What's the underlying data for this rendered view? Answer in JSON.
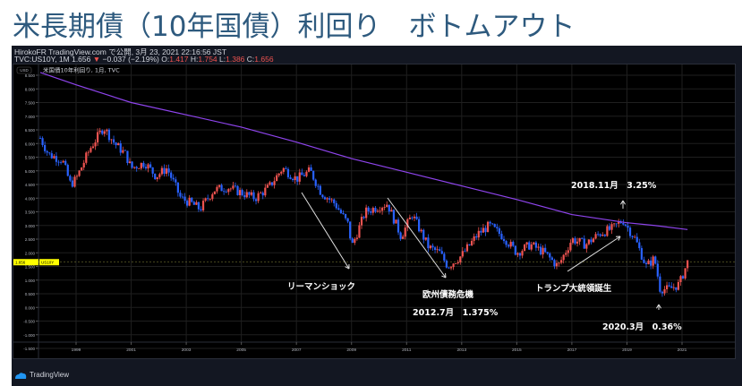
{
  "page": {
    "title": "米長期債（10年国債）利回り　ボトムアウト"
  },
  "header": {
    "line1": "HirokoFR TradingView.com で公開, 3月 23, 2021 22:16:56 JST",
    "symbol": "TVC:US10Y, 1M 1.656",
    "change_icon": "down-triangle-icon",
    "change": "−0.037 (−2.19%)",
    "o_label": "O:",
    "o_value": "1.417",
    "h_label": "H:",
    "h_value": "1.754",
    "l_label": "L:",
    "l_value": "1.386",
    "c_label": "C:",
    "c_value": "1.656"
  },
  "legend": {
    "currency": "USD",
    "series_label": "米国債10年利回り, 1月, TVC"
  },
  "price_badge": {
    "value": "1.656",
    "label": "US10Y",
    "color": "#ffff00"
  },
  "footer": {
    "brand": "TradingView",
    "logo": "tradingview-cloud-icon"
  },
  "annotations": {
    "lehman": "リーマンショック",
    "euro": "欧州債務危機",
    "euro_low": "2012.7月　1.375%",
    "trump": "トランプ大統領誕生",
    "peak": "2018.11月　3.25%",
    "bottom": "2020.3月　0.36%"
  },
  "colors": {
    "up": "#ef5350",
    "down": "#2962ff",
    "ma": "#8e44ec",
    "background": "#000000",
    "panel": "#131722",
    "grid": "#1e1e1e",
    "title": "#2e5a7e"
  },
  "chart_data": {
    "type": "candlestick",
    "title": "米長期債（10年国債）利回り　ボトムアウト",
    "symbol": "TVC:US10Y",
    "interval": "1M",
    "xlabel": "",
    "ylabel": "USD",
    "x_ticks": [
      "1999",
      "2001",
      "2003",
      "2005",
      "2007",
      "2009",
      "2011",
      "2013",
      "2015",
      "2017",
      "2019",
      "2021"
    ],
    "y_ticks": [
      "8.500",
      "8.000",
      "7.500",
      "7.000",
      "6.500",
      "6.000",
      "5.500",
      "5.000",
      "4.500",
      "4.000",
      "3.500",
      "3.000",
      "2.500",
      "2.000",
      "1.500",
      "1.000",
      "0.500",
      "0.000",
      "-0.500",
      "-1.000",
      "-1.500"
    ],
    "ylim": [
      -1.75,
      8.75
    ],
    "last_price": 1.656,
    "ohlc_last": {
      "open": 1.417,
      "high": 1.754,
      "low": 1.386,
      "close": 1.656
    },
    "series": [
      {
        "name": "US10Y monthly close (approx)",
        "x": [
          1997.7,
          1998.0,
          1998.5,
          1998.8,
          1999.0,
          1999.5,
          2000.0,
          2000.4,
          2000.8,
          2001.0,
          2001.5,
          2001.9,
          2002.3,
          2002.8,
          2003.2,
          2003.5,
          2004.0,
          2004.5,
          2005.0,
          2005.5,
          2006.0,
          2006.5,
          2007.0,
          2007.5,
          2007.9,
          2008.4,
          2008.9,
          2009.0,
          2009.5,
          2010.0,
          2010.3,
          2010.8,
          2011.2,
          2011.8,
          2012.2,
          2012.5,
          2013.0,
          2013.6,
          2014.0,
          2014.5,
          2015.0,
          2015.5,
          2016.0,
          2016.5,
          2017.0,
          2017.5,
          2018.0,
          2018.5,
          2018.85,
          2019.3,
          2019.7,
          2020.0,
          2020.2,
          2020.5,
          2020.9,
          2021.2
        ],
        "values": [
          6.2,
          5.6,
          5.4,
          4.5,
          4.7,
          5.8,
          6.6,
          6.0,
          5.6,
          5.1,
          5.3,
          4.8,
          5.1,
          4.0,
          3.8,
          3.6,
          4.3,
          4.4,
          4.2,
          4.0,
          4.4,
          5.1,
          4.7,
          5.0,
          4.2,
          3.8,
          3.0,
          2.2,
          3.5,
          3.7,
          3.8,
          2.6,
          3.4,
          2.2,
          2.0,
          1.5,
          1.9,
          2.7,
          3.0,
          2.6,
          2.0,
          2.3,
          2.0,
          1.5,
          2.5,
          2.3,
          2.7,
          2.9,
          3.2,
          2.5,
          1.5,
          1.8,
          0.7,
          0.65,
          0.85,
          1.66
        ]
      },
      {
        "name": "Moving average (purple)",
        "x": [
          1997.7,
          1999.0,
          2001.0,
          2003.0,
          2005.0,
          2007.0,
          2009.0,
          2011.0,
          2013.0,
          2015.0,
          2017.0,
          2019.0,
          2020.0,
          2021.2
        ],
        "values": [
          8.6,
          8.15,
          7.5,
          7.05,
          6.6,
          6.05,
          5.45,
          4.95,
          4.45,
          3.95,
          3.4,
          3.1,
          3.0,
          2.85
        ]
      }
    ],
    "annotations": [
      {
        "text": "リーマンショック",
        "note": "arrow 2007→2009 decline"
      },
      {
        "text": "欧州債務危機",
        "note": "arrow 2010→2012 decline"
      },
      {
        "text": "2012.7月　1.375%"
      },
      {
        "text": "トランプ大統領誕生",
        "note": "arrow 2016→2018 rise"
      },
      {
        "text": "2018.11月　3.25%",
        "note": "peak"
      },
      {
        "text": "2020.3月　0.36%",
        "note": "bottom"
      }
    ],
    "grid": true
  }
}
